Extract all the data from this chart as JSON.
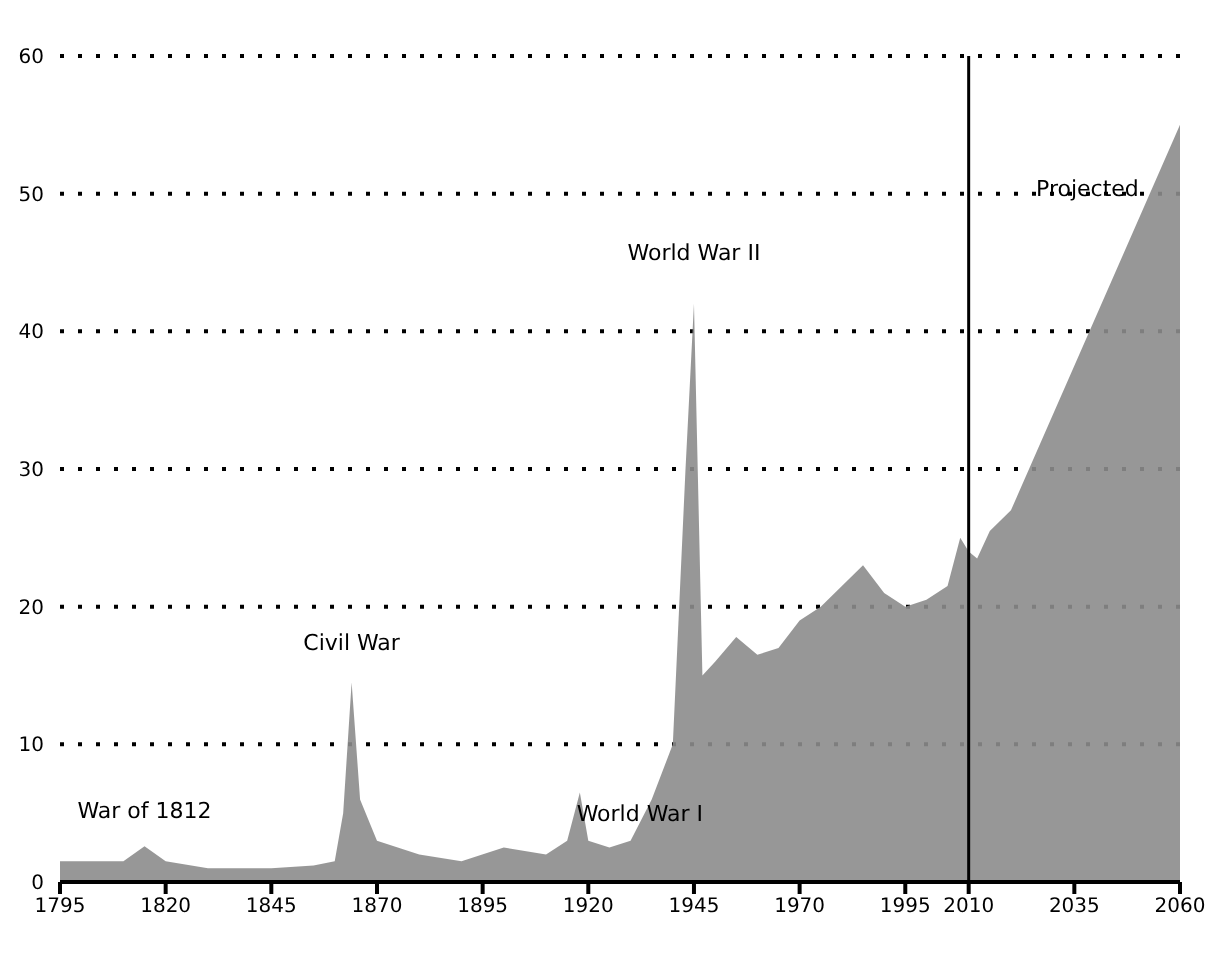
{
  "chart_data": {
    "type": "area",
    "x": [
      1795,
      1805,
      1810,
      1815,
      1820,
      1830,
      1845,
      1855,
      1860,
      1862,
      1864,
      1866,
      1870,
      1880,
      1890,
      1900,
      1910,
      1915,
      1918,
      1920,
      1925,
      1930,
      1935,
      1940,
      1943,
      1945,
      1947,
      1950,
      1955,
      1960,
      1965,
      1970,
      1975,
      1980,
      1985,
      1990,
      1995,
      2000,
      2005,
      2008,
      2010,
      2012,
      2015,
      2020,
      2060
    ],
    "series": [
      {
        "color": "#8c8c8c",
        "values": [
          1.5,
          1.5,
          1.5,
          2.6,
          1.5,
          1,
          1,
          1.2,
          1.5,
          5,
          14.5,
          6,
          3,
          2,
          1.5,
          2.5,
          2,
          3,
          6.5,
          3,
          2.5,
          3,
          6,
          10,
          30,
          42,
          15,
          16,
          17.8,
          16.5,
          17,
          19,
          20,
          21.5,
          23,
          21,
          20,
          20.5,
          21.5,
          25,
          24,
          23.5,
          25.5,
          27,
          55
        ]
      }
    ],
    "xlim": [
      1795,
      2060
    ],
    "xticks": [
      1795,
      1820,
      1845,
      1870,
      1895,
      1920,
      1945,
      1970,
      1995,
      2010,
      2035,
      2060
    ],
    "ylim": [
      0,
      60
    ],
    "yticks": [
      0,
      10,
      20,
      30,
      40,
      50,
      60
    ],
    "grid": "y",
    "line_style": "dotted",
    "ref_lines": [
      {
        "axis": "x",
        "value": 2010,
        "color": "#000000"
      }
    ],
    "annotations": [
      {
        "text": "War of 1812",
        "x": 1815,
        "y": 2.6
      },
      {
        "text": "Civil War",
        "x": 1864,
        "y": 14.5
      },
      {
        "text": "World War I",
        "x": 1918,
        "y": 6.5
      },
      {
        "text": "World War II",
        "x": 1945,
        "y": 42
      },
      "Projected"
    ]
  }
}
